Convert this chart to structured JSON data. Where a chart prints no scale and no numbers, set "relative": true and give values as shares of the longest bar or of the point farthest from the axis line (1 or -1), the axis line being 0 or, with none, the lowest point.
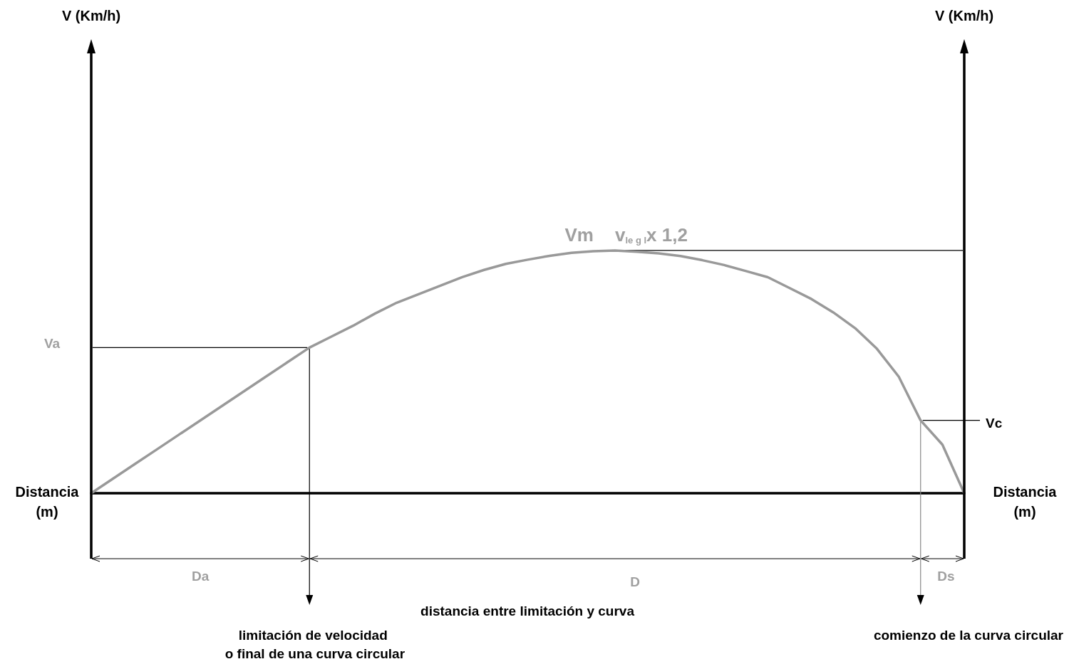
{
  "chart_data": {
    "type": "line",
    "relative": true,
    "xlabel": "Distancia (m)",
    "categories": [
      null,
      null,
      null,
      null,
      null,
      null,
      null,
      null,
      null,
      null,
      null,
      null,
      null,
      null,
      null,
      null,
      null,
      null,
      null,
      null,
      null,
      null,
      null,
      null,
      null,
      null,
      null,
      null,
      null,
      null,
      null,
      null,
      null,
      null,
      null,
      null,
      null,
      null,
      null,
      null,
      null
    ],
    "series": [
      {
        "color": "#999999",
        "values": [
          0,
          0.06,
          0.12,
          0.18,
          0.24,
          0.3,
          0.36,
          0.42,
          0.48,
          0.54,
          0.6,
          0.645,
          0.69,
          0.74,
          0.785,
          0.82,
          0.855,
          0.89,
          0.92,
          0.945,
          0.962,
          0.978,
          0.99,
          0.997,
          1,
          0.995,
          0.988,
          0.977,
          0.96,
          0.94,
          0.915,
          0.89,
          0.845,
          0.8,
          0.745,
          0.68,
          0.595,
          0.48,
          0.3,
          0.2,
          0
        ]
      }
    ],
    "ref_lines": [
      {
        "axis": "y",
        "value": 0.6,
        "label": "Va"
      },
      {
        "axis": "y",
        "value": 1,
        "label": "Vm"
      },
      {
        "axis": "y",
        "value": 0.3,
        "label": "Vc"
      }
    ],
    "annotations": [
      "v$_{le g l}$x 1,2",
      "Da",
      "D",
      "Ds",
      "distancia entre limitación y curva",
      "limitación de velocidad\n o final de una curva circular",
      "comienzo de la curva circular",
      "V (Km/h)",
      "V (Km/h)"
    ],
    "marker": "none",
    "line_style": "solid",
    "grid": false
  }
}
